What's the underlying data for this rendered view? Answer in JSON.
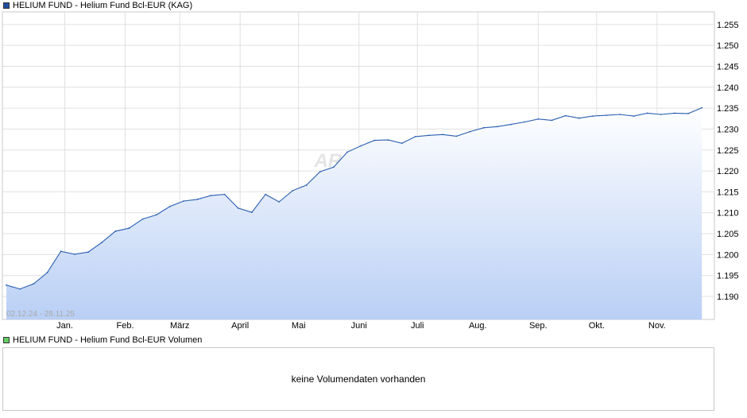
{
  "legend": {
    "price_label": "HELIUM FUND - Helium Fund Bcl-EUR (KAG)",
    "price_color": "#1f4ea0",
    "volume_label": "HELIUM FUND - Helium Fund Bcl-EUR Volumen",
    "volume_color": "#66cc66"
  },
  "watermark": "ARIVA.DE",
  "volume": {
    "message": "keine Volumendaten vorhanden"
  },
  "chart_data": {
    "type": "area",
    "title": "HELIUM FUND - Helium Fund Bcl-EUR (KAG)",
    "date_range_label": "02.12.24 - 28.11.25",
    "line_color": "#2a5fb0",
    "fill_color_top": "#ffffff",
    "fill_color_bottom": "#b9cff5",
    "grid": true,
    "x_start": "2024-12-02",
    "x_end": "2025-11-28",
    "xlim": [
      "2024-12-02",
      "2025-11-28"
    ],
    "ylim": [
      1.1845,
      1.258
    ],
    "y_ticks": [
      "1.190",
      "1.195",
      "1.200",
      "1.205",
      "1.210",
      "1.215",
      "1.220",
      "1.225",
      "1.230",
      "1.235",
      "1.240",
      "1.245",
      "1.250",
      "1.255"
    ],
    "x_ticks": [
      {
        "label": "Jan.",
        "date": "2025-01-01"
      },
      {
        "label": "Feb.",
        "date": "2025-02-01"
      },
      {
        "label": "März",
        "date": "2025-03-01"
      },
      {
        "label": "April",
        "date": "2025-04-01"
      },
      {
        "label": "Mai",
        "date": "2025-05-01"
      },
      {
        "label": "Juni",
        "date": "2025-06-01"
      },
      {
        "label": "Juli",
        "date": "2025-07-01"
      },
      {
        "label": "Aug.",
        "date": "2025-08-01"
      },
      {
        "label": "Sep.",
        "date": "2025-09-01"
      },
      {
        "label": "Okt.",
        "date": "2025-10-01"
      },
      {
        "label": "Nov.",
        "date": "2025-11-01"
      }
    ],
    "series": [
      {
        "name": "HELIUM FUND - Helium Fund Bcl-EUR (KAG)",
        "points": [
          [
            "2024-12-02",
            1.1927
          ],
          [
            "2024-12-09",
            1.1918
          ],
          [
            "2024-12-16",
            1.193
          ],
          [
            "2024-12-23",
            1.1957
          ],
          [
            "2024-12-30",
            1.2008
          ],
          [
            "2025-01-06",
            1.2001
          ],
          [
            "2025-01-13",
            1.2006
          ],
          [
            "2025-01-20",
            1.2029
          ],
          [
            "2025-01-27",
            1.2056
          ],
          [
            "2025-02-03",
            1.2063
          ],
          [
            "2025-02-10",
            1.2085
          ],
          [
            "2025-02-17",
            1.2095
          ],
          [
            "2025-02-24",
            1.2115
          ],
          [
            "2025-03-03",
            1.2128
          ],
          [
            "2025-03-10",
            1.2132
          ],
          [
            "2025-03-17",
            1.2141
          ],
          [
            "2025-03-24",
            1.2144
          ],
          [
            "2025-03-31",
            1.2111
          ],
          [
            "2025-04-07",
            1.2101
          ],
          [
            "2025-04-14",
            1.2144
          ],
          [
            "2025-04-21",
            1.2126
          ],
          [
            "2025-04-28",
            1.2153
          ],
          [
            "2025-05-05",
            1.2166
          ],
          [
            "2025-05-12",
            1.2198
          ],
          [
            "2025-05-19",
            1.2209
          ],
          [
            "2025-05-26",
            1.2245
          ],
          [
            "2025-06-02",
            1.226
          ],
          [
            "2025-06-09",
            1.2273
          ],
          [
            "2025-06-16",
            1.2274
          ],
          [
            "2025-06-23",
            1.2266
          ],
          [
            "2025-06-30",
            1.2282
          ],
          [
            "2025-07-07",
            1.2285
          ],
          [
            "2025-07-14",
            1.2287
          ],
          [
            "2025-07-21",
            1.2283
          ],
          [
            "2025-07-28",
            1.2294
          ],
          [
            "2025-08-04",
            1.2303
          ],
          [
            "2025-08-11",
            1.2306
          ],
          [
            "2025-08-18",
            1.2311
          ],
          [
            "2025-08-25",
            1.2317
          ],
          [
            "2025-09-01",
            1.2324
          ],
          [
            "2025-09-08",
            1.2321
          ],
          [
            "2025-09-15",
            1.2332
          ],
          [
            "2025-09-22",
            1.2326
          ],
          [
            "2025-09-29",
            1.2331
          ],
          [
            "2025-10-06",
            1.2333
          ],
          [
            "2025-10-13",
            1.2335
          ],
          [
            "2025-10-20",
            1.2331
          ],
          [
            "2025-10-27",
            1.2338
          ],
          [
            "2025-11-03",
            1.2335
          ],
          [
            "2025-11-10",
            1.2338
          ],
          [
            "2025-11-17",
            1.2337
          ],
          [
            "2025-11-24",
            1.2351
          ]
        ]
      }
    ]
  }
}
